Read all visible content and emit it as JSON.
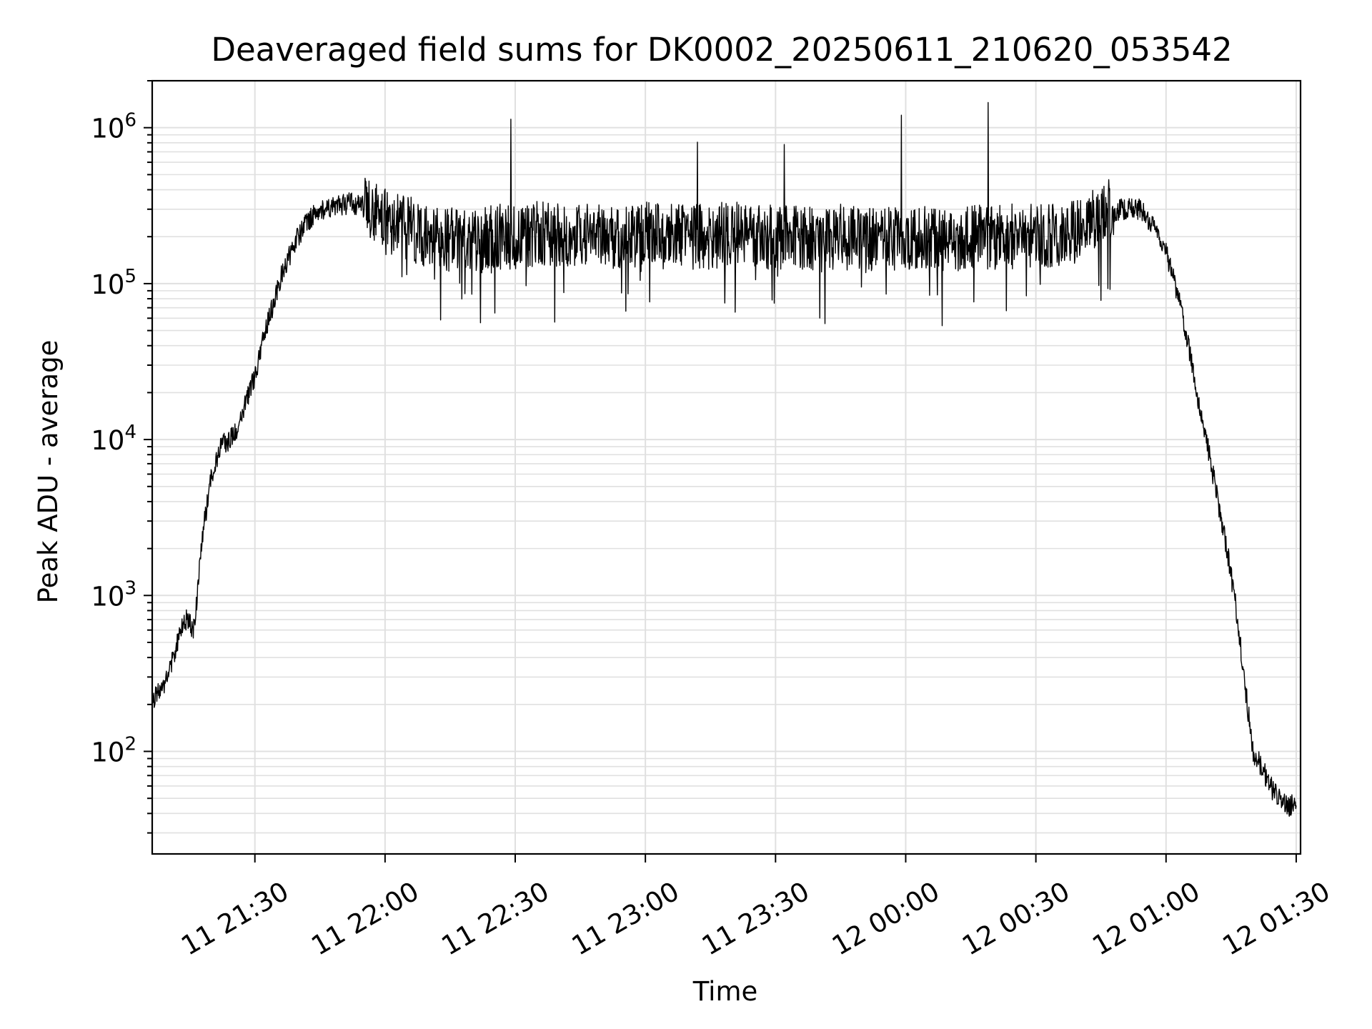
{
  "chart_data": {
    "type": "line",
    "title": "Deaveraged field sums for DK0002_20250611_210620_053542",
    "xlabel": "Time",
    "ylabel": "Peak ADU - average",
    "yscale": "log",
    "ylim": [
      22,
      2000000
    ],
    "xlim": [
      "2025-06-11 21:06:20",
      "2025-06-12 01:31:00"
    ],
    "grid": true,
    "legend": "none",
    "line_color": "#000000",
    "x_ticks": [
      "11 21:30",
      "11 22:00",
      "11 22:30",
      "11 23:00",
      "11 23:30",
      "12 00:00",
      "12 00:30",
      "12 01:00",
      "12 01:30"
    ],
    "y_ticks": [
      {
        "base": "10",
        "exp": "2",
        "value": 100
      },
      {
        "base": "10",
        "exp": "3",
        "value": 1000
      },
      {
        "base": "10",
        "exp": "4",
        "value": 10000
      },
      {
        "base": "10",
        "exp": "5",
        "value": 100000
      },
      {
        "base": "10",
        "exp": "6",
        "value": 1000000
      }
    ],
    "series": [
      {
        "x": [
          "21:06",
          "21:08",
          "21:10",
          "21:12",
          "21:14",
          "21:16",
          "21:18",
          "21:20",
          "21:22",
          "21:24",
          "21:26",
          "21:28",
          "21:30",
          "21:32",
          "21:34",
          "21:36",
          "21:38",
          "21:40",
          "21:42",
          "21:44",
          "21:46",
          "21:48",
          "21:50",
          "21:52",
          "21:54",
          "21:56",
          "21:58",
          "22:00",
          "22:05",
          "22:10",
          "22:15",
          "22:20",
          "22:25",
          "22:29",
          "22:30",
          "22:35",
          "22:40",
          "22:45",
          "22:50",
          "22:55",
          "23:00",
          "23:05",
          "23:10",
          "23:12",
          "23:15",
          "23:20",
          "23:25",
          "23:30",
          "23:32",
          "23:35",
          "23:40",
          "23:45",
          "23:50",
          "23:55",
          "23:59",
          "00:00",
          "00:05",
          "00:10",
          "00:15",
          "00:19",
          "00:20",
          "00:25",
          "00:30",
          "00:35",
          "00:40",
          "00:45",
          "00:50",
          "00:52",
          "00:54",
          "00:56",
          "00:58",
          "01:00",
          "01:02",
          "01:04",
          "01:06",
          "01:08",
          "01:10",
          "01:12",
          "01:14",
          "01:16",
          "01:18",
          "01:20",
          "01:22",
          "01:24",
          "01:26",
          "01:28",
          "01:30"
        ],
        "values": [
          200,
          250,
          300,
          500,
          700,
          600,
          2500,
          6000,
          9000,
          10000,
          12000,
          18000,
          25000,
          45000,
          70000,
          110000,
          150000,
          200000,
          250000,
          280000,
          300000,
          310000,
          320000,
          330000,
          320000,
          300000,
          280000,
          250000,
          230000,
          200000,
          190000,
          180000,
          200000,
          1100000,
          200000,
          210000,
          200000,
          210000,
          200000,
          200000,
          210000,
          200000,
          200000,
          950000,
          200000,
          210000,
          200000,
          200000,
          1000000,
          200000,
          190000,
          200000,
          190000,
          190000,
          1050000,
          200000,
          200000,
          190000,
          200000,
          1100000,
          200000,
          200000,
          200000,
          210000,
          220000,
          280000,
          300000,
          300000,
          300000,
          260000,
          220000,
          160000,
          100000,
          60000,
          30000,
          15000,
          8000,
          4000,
          2000,
          900,
          300,
          100,
          80,
          60,
          50,
          45,
          45
        ]
      }
    ]
  }
}
